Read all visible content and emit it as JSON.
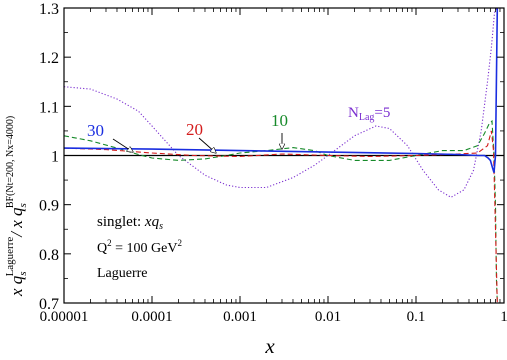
{
  "chart_data": {
    "type": "line",
    "xlabel": "x",
    "ylabel_main": "x q",
    "ylabel_sub": "s",
    "ylabel_sup": "Laguerre",
    "ylabel_div": "/ x q",
    "ylabel_div_sub": "s",
    "ylabel_div_sup": "BF(Nt=200, Nx=4000)",
    "x_scale": "log",
    "xlim": [
      1e-05,
      1
    ],
    "ylim": [
      0.7,
      1.3
    ],
    "x_ticks": [
      {
        "v": 1e-05,
        "label": "0.00001"
      },
      {
        "v": 0.0001,
        "label": "0.0001"
      },
      {
        "v": 0.001,
        "label": "0.001"
      },
      {
        "v": 0.01,
        "label": "0.01"
      },
      {
        "v": 0.1,
        "label": "0.1"
      },
      {
        "v": 1,
        "label": "1"
      }
    ],
    "y_ticks": [
      {
        "v": 0.7,
        "label": "0.7"
      },
      {
        "v": 0.8,
        "label": "0.8"
      },
      {
        "v": 0.9,
        "label": "0.9"
      },
      {
        "v": 1.0,
        "label": "1"
      },
      {
        "v": 1.1,
        "label": "1.1"
      },
      {
        "v": 1.2,
        "label": "1.2"
      },
      {
        "v": 1.3,
        "label": "1.3"
      }
    ],
    "reference_line": 1.0,
    "series": [
      {
        "name": "NLag=5",
        "color": "#7b2fd0",
        "style": "dotted",
        "points": [
          [
            1e-05,
            1.14
          ],
          [
            2e-05,
            1.135
          ],
          [
            4e-05,
            1.115
          ],
          [
            7e-05,
            1.09
          ],
          [
            0.0001,
            1.06
          ],
          [
            0.0002,
            1.0
          ],
          [
            0.0004,
            0.96
          ],
          [
            0.0007,
            0.94
          ],
          [
            0.001,
            0.935
          ],
          [
            0.002,
            0.935
          ],
          [
            0.004,
            0.955
          ],
          [
            0.007,
            0.98
          ],
          [
            0.01,
            1.0
          ],
          [
            0.02,
            1.04
          ],
          [
            0.035,
            1.06
          ],
          [
            0.05,
            1.055
          ],
          [
            0.08,
            1.02
          ],
          [
            0.12,
            0.97
          ],
          [
            0.18,
            0.93
          ],
          [
            0.25,
            0.915
          ],
          [
            0.35,
            0.93
          ],
          [
            0.45,
            0.97
          ],
          [
            0.55,
            1.05
          ],
          [
            0.65,
            1.15
          ],
          [
            0.72,
            1.22
          ],
          [
            0.78,
            1.29
          ],
          [
            0.82,
            1.3
          ]
        ]
      },
      {
        "name": "10",
        "color": "#178a2a",
        "style": "dashed",
        "points": [
          [
            1e-05,
            1.04
          ],
          [
            2e-05,
            1.03
          ],
          [
            4e-05,
            1.015
          ],
          [
            7e-05,
            1.002
          ],
          [
            0.0001,
            0.995
          ],
          [
            0.0002,
            0.99
          ],
          [
            0.0004,
            0.993
          ],
          [
            0.0007,
            1.0
          ],
          [
            0.001,
            1.005
          ],
          [
            0.002,
            1.01
          ],
          [
            0.004,
            1.016
          ],
          [
            0.007,
            1.01
          ],
          [
            0.01,
            1.0
          ],
          [
            0.02,
            0.99
          ],
          [
            0.05,
            0.99
          ],
          [
            0.1,
            1.0
          ],
          [
            0.2,
            1.01
          ],
          [
            0.35,
            1.01
          ],
          [
            0.5,
            1.02
          ],
          [
            0.6,
            1.045
          ],
          [
            0.68,
            1.065
          ],
          [
            0.73,
            1.07
          ],
          [
            0.77,
            1.0
          ],
          [
            0.8,
            0.9
          ],
          [
            0.82,
            0.75
          ],
          [
            0.84,
            0.7
          ]
        ]
      },
      {
        "name": "20",
        "color": "#d41c1c",
        "style": "dashed",
        "points": [
          [
            1e-05,
            1.015
          ],
          [
            3e-05,
            1.012
          ],
          [
            0.0001,
            1.005
          ],
          [
            0.0003,
            1.0
          ],
          [
            0.001,
            0.998
          ],
          [
            0.003,
            1.003
          ],
          [
            0.01,
            1.0
          ],
          [
            0.03,
            0.998
          ],
          [
            0.1,
            1.0
          ],
          [
            0.3,
            1.003
          ],
          [
            0.5,
            1.005
          ],
          [
            0.65,
            1.02
          ],
          [
            0.72,
            1.05
          ],
          [
            0.76,
            1.01
          ],
          [
            0.8,
            0.85
          ],
          [
            0.84,
            0.7
          ]
        ]
      },
      {
        "name": "30",
        "color": "#1a2ee0",
        "style": "solid",
        "points": [
          [
            1e-05,
            1.015
          ],
          [
            0.0001,
            1.013
          ],
          [
            0.001,
            1.01
          ],
          [
            0.01,
            1.007
          ],
          [
            0.1,
            1.004
          ],
          [
            0.3,
            1.002
          ],
          [
            0.5,
            1.0
          ],
          [
            0.6,
            1.0
          ],
          [
            0.66,
            0.995
          ],
          [
            0.7,
            0.99
          ],
          [
            0.74,
            0.975
          ],
          [
            0.77,
            0.965
          ],
          [
            0.8,
            1.0
          ],
          [
            0.82,
            1.15
          ],
          [
            0.84,
            1.3
          ]
        ]
      }
    ],
    "annotations": {
      "label_30": "30",
      "label_20": "20",
      "label_10": "10",
      "label_5_main": "N",
      "label_5_sub": "Lag",
      "label_5_tail": "=5",
      "info_line1_a": "singlet: ",
      "info_line1_b": "xq",
      "info_line1_c": "s",
      "info_line2_a": "Q",
      "info_line2_b": "2",
      "info_line2_c": " = 100 GeV",
      "info_line2_d": "2",
      "info_line3": "Laguerre"
    }
  }
}
